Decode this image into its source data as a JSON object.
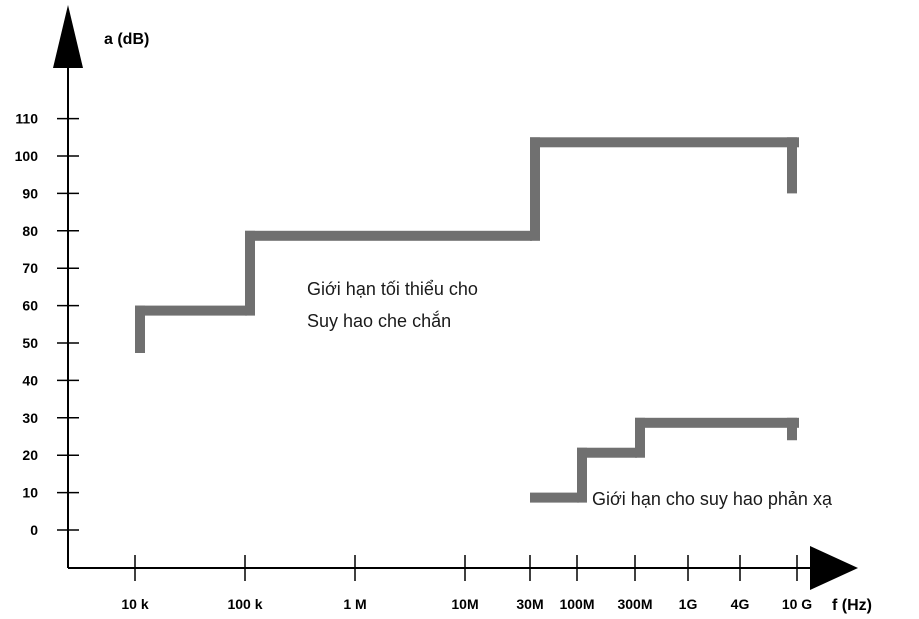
{
  "chart_data": {
    "type": "line",
    "y_axis_label": "a (dB)",
    "x_axis_label": "f (Hz)",
    "y_ticks": [
      "110",
      "100",
      "90",
      "80",
      "70",
      "60",
      "50",
      "40",
      "30",
      "20",
      "10",
      "0"
    ],
    "x_ticks": [
      "10 k",
      "100 k",
      "1 M",
      "10M",
      "30M",
      "100M",
      "300M",
      "1G",
      "4G",
      "10 G"
    ],
    "series": [
      {
        "annotation_lines": [
          "Giới hạn tối thiểu cho",
          "Suy hao che chắn"
        ],
        "points": [
          {
            "f": "10 k",
            "a": 50
          },
          {
            "f": "10 k",
            "a": 60
          },
          {
            "f": "100 k",
            "a": 60
          },
          {
            "f": "100 k",
            "a": 80
          },
          {
            "f": "30M",
            "a": 80
          },
          {
            "f": "30M",
            "a": 105
          },
          {
            "f": "10 G",
            "a": 105
          },
          {
            "f": "10 G",
            "a": 90
          }
        ]
      },
      {
        "annotation_lines": [
          "Giới hạn cho suy hao phản xạ"
        ],
        "points": [
          {
            "f": "30M",
            "a": 10
          },
          {
            "f": "100M",
            "a": 10
          },
          {
            "f": "100M",
            "a": 22
          },
          {
            "f": "300M",
            "a": 22
          },
          {
            "f": "300M",
            "a": 30
          },
          {
            "f": "10 G",
            "a": 30
          },
          {
            "f": "10 G",
            "a": 24
          }
        ]
      }
    ],
    "color": "#707070"
  }
}
